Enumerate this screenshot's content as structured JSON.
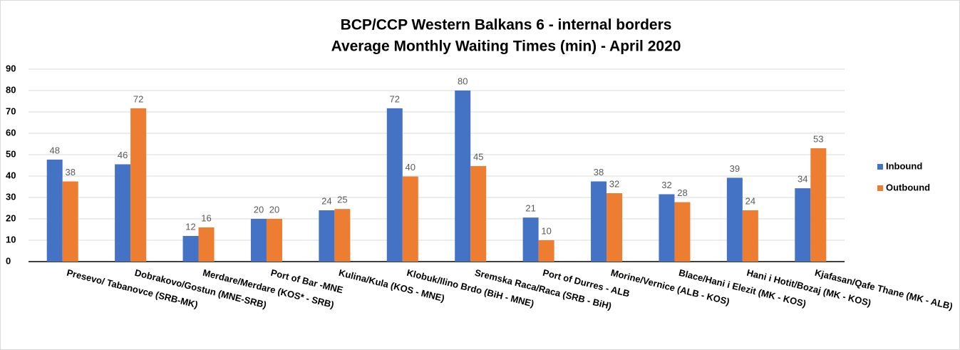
{
  "chart_data": {
    "type": "bar",
    "title": "BCP/CCP  Western Balkans 6 - internal borders",
    "subtitle": "Average Monthly Waiting Times (min) - April 2020",
    "categories": [
      "Presevo/ Tabanovce (SRB-MK)",
      "Dobrakovo/Gostun (MNE-SRB)",
      "Merdare/Merdare (KOS* - SRB)",
      "Port of Bar -MNE",
      "Kulina/Kula (KOS - MNE)",
      "Klobuk/Ilino Brdo (BiH - MNE)",
      "Sremska Raca/Raca (SRB - BiH)",
      "Port of Durres - ALB",
      "Morine/Vernice (ALB - KOS)",
      "Blace/Hani i Elezit (MK - KOS)",
      "Hani i Hotit/Bozaj (MK - KOS)",
      "Kjafasan/Qafe Thane (MK - ALB)"
    ],
    "series": [
      {
        "name": "Inbound",
        "color": "#4472c4",
        "values": [
          47.7,
          45.5,
          12,
          20,
          24,
          71.7,
          80,
          20.6,
          37.5,
          31.5,
          39.2,
          34.3
        ],
        "value_labels": [
          "48",
          "46",
          "12",
          "20",
          "24",
          "72",
          "80",
          "21",
          "38",
          "32",
          "39",
          "34"
        ]
      },
      {
        "name": "Outbound",
        "color": "#ed7d31",
        "values": [
          37.5,
          71.7,
          16,
          20,
          24.6,
          39.8,
          44.7,
          10,
          32,
          27.8,
          24,
          53
        ],
        "value_labels": [
          "38",
          "72",
          "16",
          "20",
          "25",
          "40",
          "45",
          "10",
          "32",
          "28",
          "24",
          "53"
        ]
      }
    ],
    "ylim": [
      0,
      90
    ],
    "yticks": [
      0,
      10,
      20,
      30,
      40,
      50,
      60,
      70,
      80,
      90
    ],
    "grid": true,
    "legend": "right"
  }
}
